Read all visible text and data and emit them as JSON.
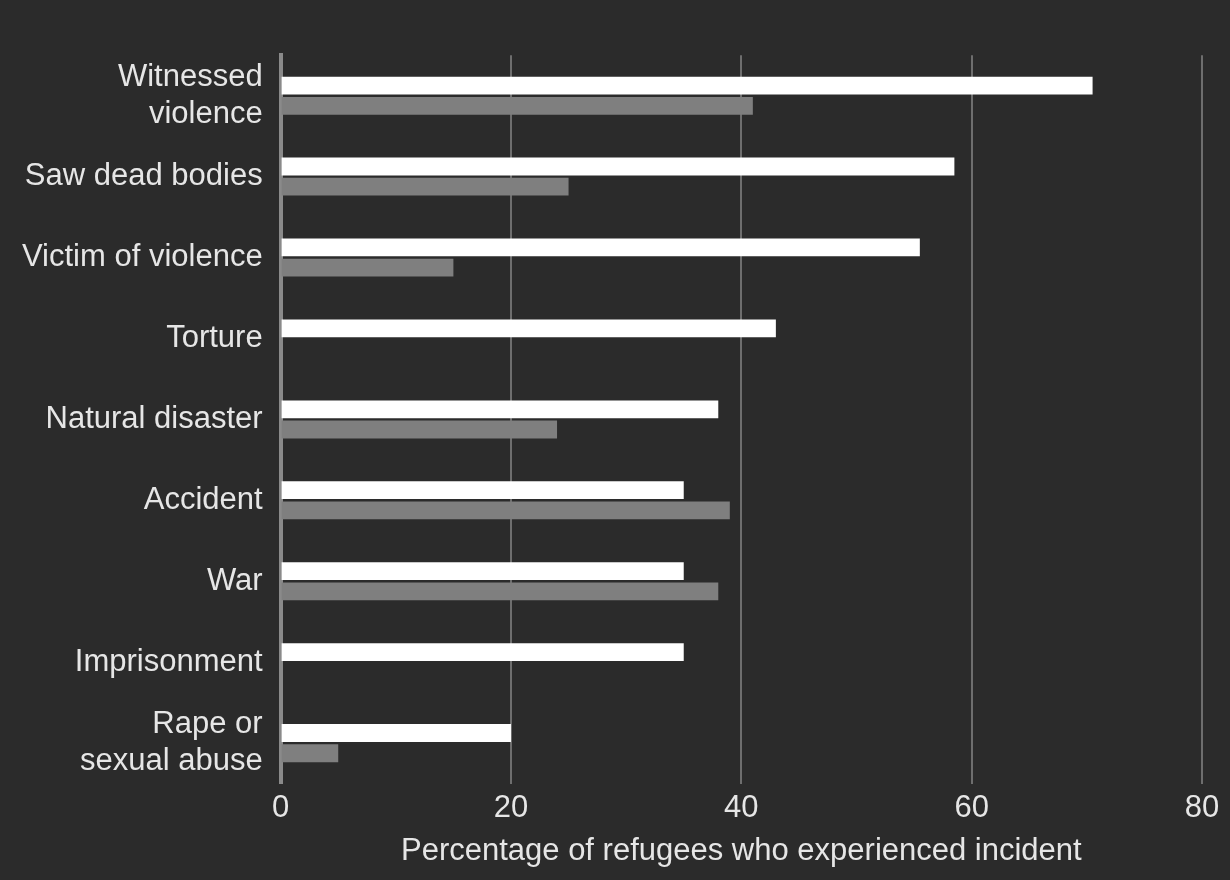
{
  "chart_data": {
    "type": "bar",
    "orientation": "horizontal",
    "xlabel": "Percentage of refugees who experienced incident",
    "categories": [
      "Witnessed\nviolence",
      "Saw dead bodies",
      "Victim of violence",
      "Torture",
      "Natural disaster",
      "Accident",
      "War",
      "Imprisonment",
      "Rape or\nsexual abuse"
    ],
    "series": [
      {
        "color": "#ffffff",
        "values": [
          70.5,
          58.5,
          55.5,
          43,
          38,
          35,
          35,
          35,
          20
        ]
      },
      {
        "color": "#7f7f7f",
        "values": [
          41,
          25,
          15,
          null,
          24,
          39,
          38,
          null,
          5
        ]
      }
    ],
    "xlim": [
      0,
      80
    ],
    "xticks": [
      0,
      20,
      40,
      60,
      80
    ],
    "grid": "x",
    "legend": false
  }
}
